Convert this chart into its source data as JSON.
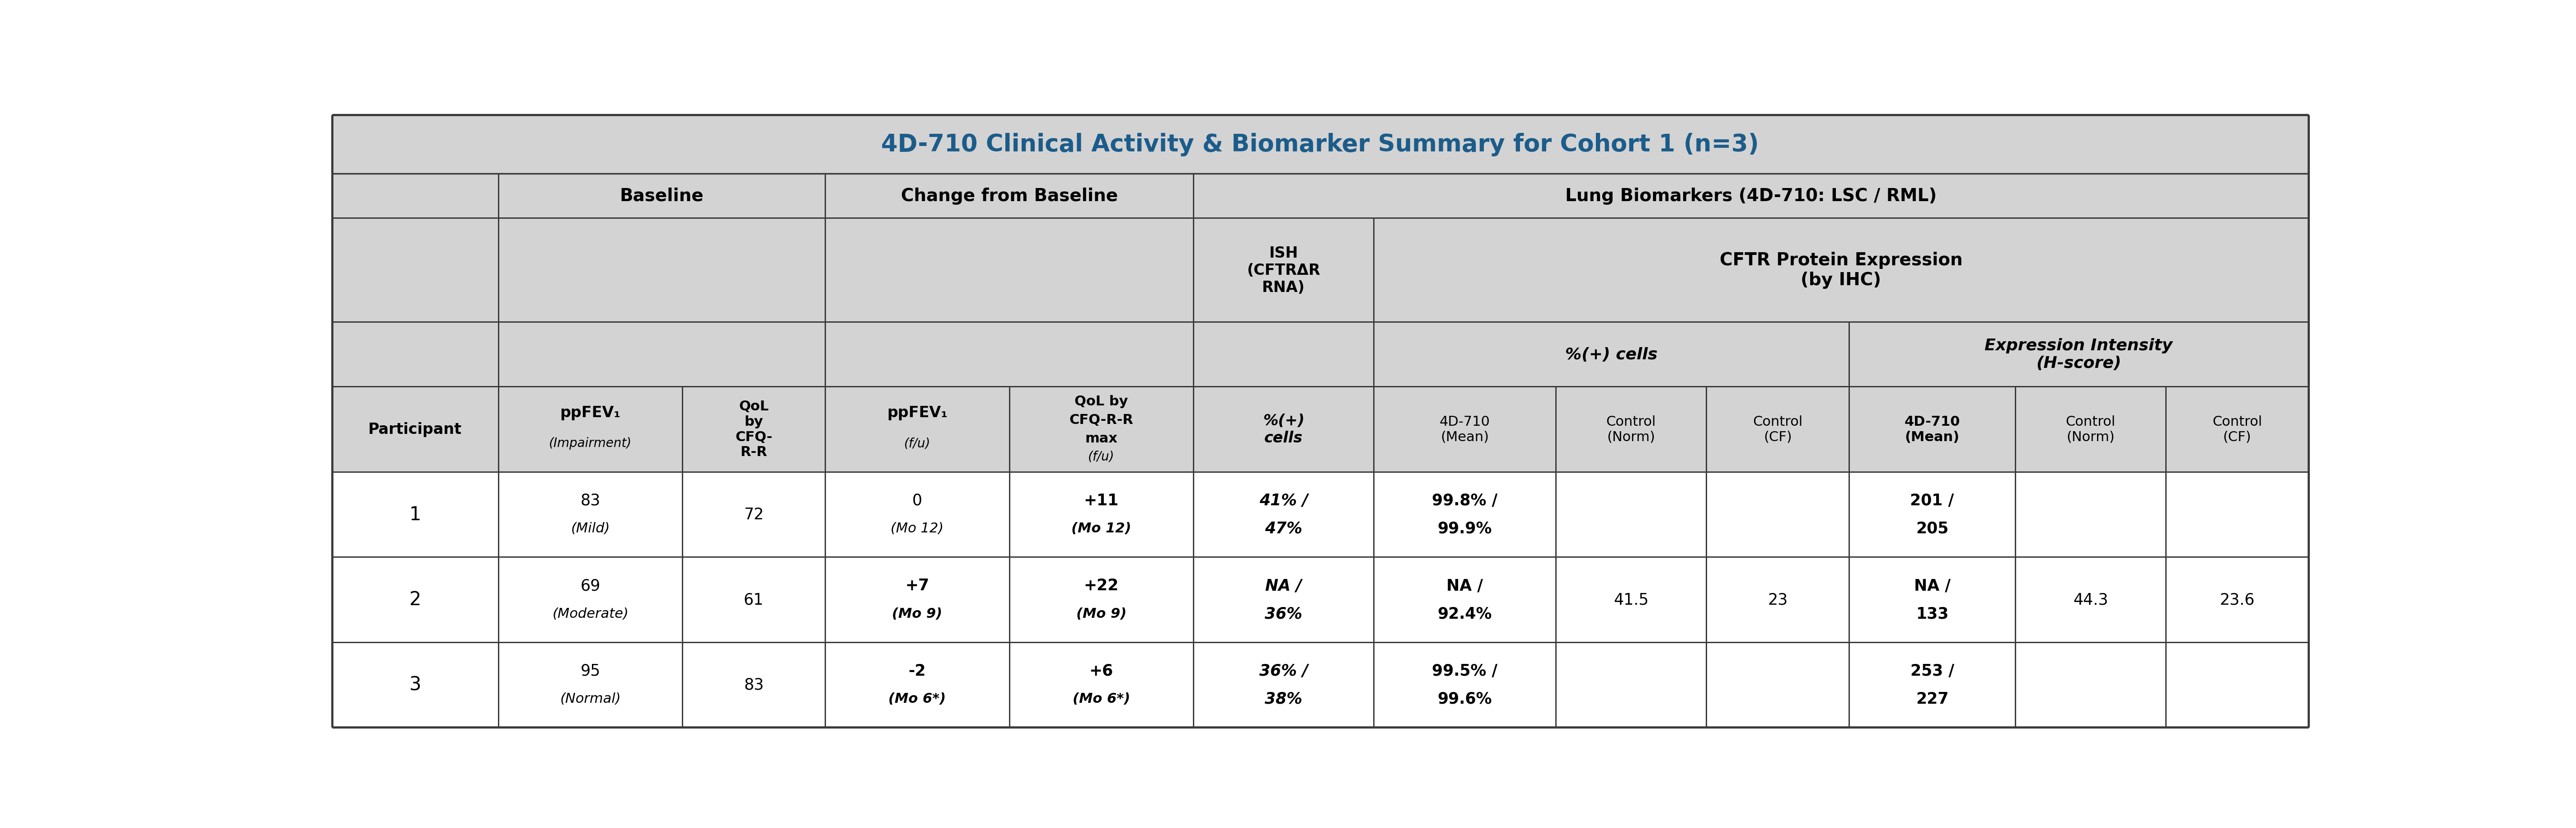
{
  "title": "4D-710 Clinical Activity & Biomarker Summary for Cohort 1 (n=3)",
  "title_color": "#1B5C8A",
  "header_bg": "#D3D3D3",
  "cell_bg": "#FFFFFF",
  "border_color": "#3A3A3A",
  "participants": [
    "1",
    "2",
    "3"
  ],
  "data_rows": [
    [
      "83\n(Mild)",
      "72",
      "0\n(Mo 12)",
      "+11\n(Mo 12)",
      "41% /\n47%",
      "99.8% /\n99.9%",
      "",
      "",
      "201 /\n205",
      "",
      ""
    ],
    [
      "69\n(Moderate)",
      "61",
      "+7\n(Mo 9)",
      "+22\n(Mo 9)",
      "NA /\n36%",
      "NA /\n92.4%",
      "41.5",
      "23",
      "NA /\n133",
      "44.3",
      "23.6"
    ],
    [
      "95\n(Normal)",
      "83",
      "-2\n(Mo 6*)",
      "+6\n(Mo 6*)",
      "36% /\n38%",
      "99.5% /\n99.6%",
      "",
      "",
      "253 /\n227",
      "",
      ""
    ]
  ],
  "raw_cw": [
    0.084,
    0.093,
    0.072,
    0.093,
    0.093,
    0.091,
    0.092,
    0.076,
    0.072,
    0.084,
    0.076,
    0.072
  ],
  "raw_rh": [
    0.118,
    0.09,
    0.21,
    0.13,
    0.172,
    0.172,
    0.172,
    0.172
  ]
}
